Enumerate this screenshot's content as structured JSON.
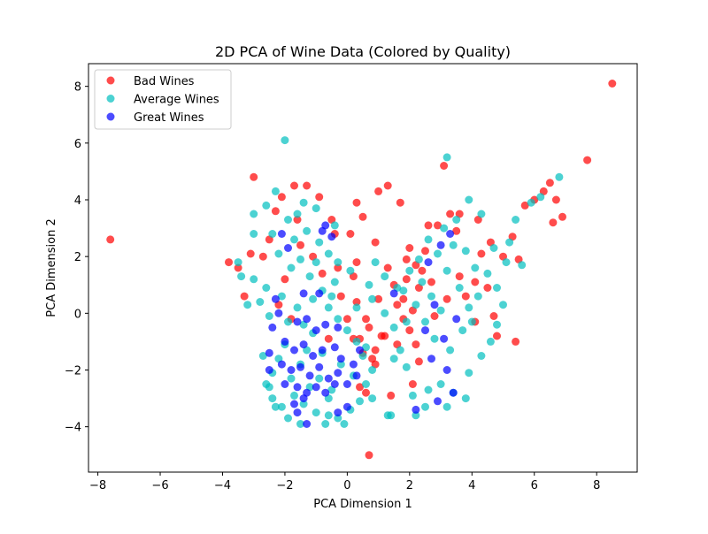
{
  "chart_data": {
    "type": "scatter",
    "title": "2D PCA of Wine Data (Colored by Quality)",
    "xlabel": "PCA Dimension 1",
    "ylabel": "PCA Dimension 2",
    "xlim": [
      -8.3,
      9.3
    ],
    "ylim": [
      -5.6,
      8.8
    ],
    "xticks": [
      -8,
      -6,
      -4,
      -2,
      0,
      2,
      4,
      6,
      8
    ],
    "yticks": [
      -4,
      -2,
      0,
      2,
      4,
      6,
      8
    ],
    "grid": false,
    "legend_position": "top-left",
    "series": [
      {
        "name": "Bad Wines",
        "color": "#ff0000",
        "opacity": 0.7,
        "points": [
          [
            8.5,
            8.1
          ],
          [
            -7.6,
            2.6
          ],
          [
            7.7,
            5.4
          ],
          [
            -3.0,
            4.8
          ],
          [
            -2.1,
            4.1
          ],
          [
            -1.7,
            4.5
          ],
          [
            -1.3,
            4.5
          ],
          [
            -0.9,
            4.1
          ],
          [
            -0.5,
            3.3
          ],
          [
            0.3,
            3.9
          ],
          [
            0.5,
            3.4
          ],
          [
            1.0,
            4.3
          ],
          [
            1.3,
            4.5
          ],
          [
            1.7,
            3.9
          ],
          [
            2.6,
            3.1
          ],
          [
            3.1,
            5.2
          ],
          [
            -3.5,
            1.6
          ],
          [
            -3.8,
            1.8
          ],
          [
            -3.3,
            0.6
          ],
          [
            -3.1,
            2.1
          ],
          [
            -2.7,
            2.0
          ],
          [
            -2.5,
            2.6
          ],
          [
            -0.4,
            2.8
          ],
          [
            0.1,
            2.8
          ],
          [
            0.9,
            2.5
          ],
          [
            1.0,
            0.5
          ],
          [
            1.5,
            1.0
          ],
          [
            1.9,
            1.2
          ],
          [
            1.6,
            0.3
          ],
          [
            1.2,
            -0.8
          ],
          [
            0.8,
            -1.6
          ],
          [
            0.7,
            -0.5
          ],
          [
            0.6,
            -0.2
          ],
          [
            0.3,
            0.4
          ],
          [
            0.4,
            -0.9
          ],
          [
            0.5,
            -1.4
          ],
          [
            0.9,
            -1.8
          ],
          [
            0.6,
            -2.8
          ],
          [
            0.7,
            -5.0
          ],
          [
            1.4,
            -2.9
          ],
          [
            0.4,
            -2.6
          ],
          [
            1.1,
            -0.8
          ],
          [
            0.9,
            -1.3
          ],
          [
            0.2,
            -0.9
          ],
          [
            2.0,
            2.3
          ],
          [
            1.9,
            1.9
          ],
          [
            2.2,
            1.7
          ],
          [
            2.5,
            2.2
          ],
          [
            2.3,
            0.9
          ],
          [
            1.8,
            0.5
          ],
          [
            1.8,
            -0.2
          ],
          [
            2.1,
            0.1
          ],
          [
            2.0,
            -0.6
          ],
          [
            2.2,
            -1.1
          ],
          [
            2.1,
            -2.5
          ],
          [
            3.6,
            3.5
          ],
          [
            4.2,
            3.3
          ],
          [
            4.6,
            2.5
          ],
          [
            5.0,
            2.0
          ],
          [
            5.3,
            2.7
          ],
          [
            5.5,
            1.9
          ],
          [
            5.7,
            3.8
          ],
          [
            6.0,
            4.0
          ],
          [
            6.3,
            4.3
          ],
          [
            6.5,
            4.6
          ],
          [
            6.7,
            4.0
          ],
          [
            6.9,
            3.4
          ],
          [
            6.6,
            3.2
          ],
          [
            5.4,
            -1.0
          ],
          [
            4.8,
            -0.8
          ],
          [
            4.5,
            0.9
          ],
          [
            4.1,
            1.1
          ],
          [
            3.8,
            0.6
          ],
          [
            4.7,
            -0.1
          ],
          [
            -1.1,
            2.0
          ],
          [
            -0.8,
            1.4
          ],
          [
            -0.3,
            1.6
          ],
          [
            0.2,
            1.3
          ],
          [
            -0.2,
            0.6
          ],
          [
            -1.5,
            2.4
          ],
          [
            -2.0,
            1.2
          ],
          [
            -1.8,
            -0.2
          ],
          [
            0.0,
            -0.2
          ],
          [
            -0.6,
            -0.9
          ],
          [
            0.3,
            1.8
          ],
          [
            1.3,
            1.6
          ],
          [
            3.3,
            3.5
          ],
          [
            2.9,
            3.1
          ],
          [
            3.5,
            2.9
          ],
          [
            4.3,
            2.1
          ],
          [
            2.8,
            -0.1
          ],
          [
            3.2,
            0.5
          ],
          [
            4.1,
            -0.3
          ],
          [
            3.6,
            1.3
          ],
          [
            2.4,
            1.5
          ],
          [
            2.7,
            1.1
          ],
          [
            1.6,
            -1.1
          ],
          [
            2.3,
            -1.7
          ],
          [
            -2.2,
            0.3
          ],
          [
            -1.6,
            3.3
          ],
          [
            -2.3,
            3.6
          ]
        ]
      },
      {
        "name": "Average Wines",
        "color": "#00bfbf",
        "opacity": 0.7,
        "points": [
          [
            -2.0,
            6.1
          ],
          [
            3.2,
            5.5
          ],
          [
            -3.0,
            3.5
          ],
          [
            -2.6,
            3.8
          ],
          [
            -2.3,
            4.3
          ],
          [
            -1.4,
            3.9
          ],
          [
            -1.0,
            3.7
          ],
          [
            -3.5,
            1.8
          ],
          [
            -3.4,
            1.3
          ],
          [
            -3.0,
            1.2
          ],
          [
            -2.6,
            0.9
          ],
          [
            -2.8,
            0.4
          ],
          [
            -3.2,
            0.3
          ],
          [
            -2.5,
            -0.1
          ],
          [
            -2.1,
            0.6
          ],
          [
            -1.8,
            1.6
          ],
          [
            -1.5,
            1.9
          ],
          [
            -1.2,
            1.3
          ],
          [
            -2.2,
            2.1
          ],
          [
            -1.7,
            2.6
          ],
          [
            -1.3,
            2.9
          ],
          [
            -0.9,
            2.5
          ],
          [
            -0.6,
            2.1
          ],
          [
            -0.3,
            1.8
          ],
          [
            0.1,
            1.5
          ],
          [
            -0.4,
            1.1
          ],
          [
            -0.8,
            0.8
          ],
          [
            -1.1,
            0.5
          ],
          [
            -1.6,
            0.2
          ],
          [
            -1.9,
            -0.3
          ],
          [
            -2.0,
            -1.1
          ],
          [
            -2.2,
            -1.6
          ],
          [
            -2.4,
            -2.1
          ],
          [
            -2.5,
            -2.6
          ],
          [
            -2.4,
            -3.0
          ],
          [
            -2.1,
            -3.3
          ],
          [
            -1.7,
            -2.9
          ],
          [
            -1.4,
            -3.2
          ],
          [
            -1.0,
            -3.5
          ],
          [
            -0.7,
            -3.9
          ],
          [
            -0.3,
            -3.7
          ],
          [
            0.1,
            -3.4
          ],
          [
            0.4,
            -3.1
          ],
          [
            0.6,
            -2.5
          ],
          [
            0.8,
            -2.0
          ],
          [
            0.5,
            -1.5
          ],
          [
            0.3,
            -1.0
          ],
          [
            0.0,
            -0.6
          ],
          [
            -0.3,
            -0.2
          ],
          [
            -0.6,
            0.2
          ],
          [
            -1.1,
            -0.7
          ],
          [
            -1.3,
            -1.3
          ],
          [
            -1.5,
            -1.8
          ],
          [
            -0.9,
            -2.3
          ],
          [
            -0.5,
            -2.7
          ],
          [
            0.2,
            -2.2
          ],
          [
            0.8,
            0.5
          ],
          [
            1.2,
            0.0
          ],
          [
            1.4,
            -3.6
          ],
          [
            1.5,
            -0.5
          ],
          [
            1.7,
            -1.3
          ],
          [
            1.9,
            -1.9
          ],
          [
            2.1,
            -2.9
          ],
          [
            2.2,
            -3.6
          ],
          [
            2.5,
            -3.3
          ],
          [
            2.6,
            -2.7
          ],
          [
            3.0,
            -2.5
          ],
          [
            3.2,
            -3.3
          ],
          [
            3.4,
            -2.8
          ],
          [
            3.8,
            -3.0
          ],
          [
            3.9,
            -2.1
          ],
          [
            4.3,
            -1.5
          ],
          [
            4.6,
            -1.0
          ],
          [
            4.8,
            -0.4
          ],
          [
            5.0,
            0.3
          ],
          [
            4.8,
            0.9
          ],
          [
            4.5,
            1.4
          ],
          [
            4.7,
            2.3
          ],
          [
            5.1,
            1.8
          ],
          [
            5.6,
            1.7
          ],
          [
            5.2,
            2.5
          ],
          [
            5.4,
            3.3
          ],
          [
            5.9,
            3.9
          ],
          [
            6.2,
            4.1
          ],
          [
            6.8,
            4.8
          ],
          [
            4.3,
            3.5
          ],
          [
            3.9,
            4.0
          ],
          [
            3.5,
            3.3
          ],
          [
            3.1,
            3.0
          ],
          [
            2.6,
            2.6
          ],
          [
            2.3,
            1.9
          ],
          [
            2.0,
            1.5
          ],
          [
            1.8,
            0.8
          ],
          [
            2.2,
            0.3
          ],
          [
            2.5,
            -0.3
          ],
          [
            2.8,
            -0.9
          ],
          [
            3.3,
            -1.3
          ],
          [
            3.7,
            -0.6
          ],
          [
            3.9,
            0.2
          ],
          [
            3.6,
            0.9
          ],
          [
            3.2,
            1.5
          ],
          [
            2.9,
            2.1
          ],
          [
            3.4,
            2.4
          ],
          [
            3.8,
            2.2
          ],
          [
            4.1,
            1.6
          ],
          [
            4.2,
            0.6
          ],
          [
            4.0,
            -0.3
          ],
          [
            2.7,
            0.6
          ],
          [
            2.4,
            1.1
          ],
          [
            3.0,
            0.1
          ],
          [
            -2.7,
            -1.5
          ],
          [
            -2.6,
            -2.5
          ],
          [
            -2.3,
            -3.3
          ],
          [
            -1.9,
            -3.7
          ],
          [
            -1.5,
            -3.9
          ],
          [
            -0.6,
            -3.6
          ],
          [
            -0.1,
            -3.9
          ],
          [
            0.8,
            -3.0
          ],
          [
            1.3,
            -3.6
          ],
          [
            -3.0,
            2.8
          ],
          [
            -2.4,
            2.8
          ],
          [
            -1.9,
            3.3
          ],
          [
            -1.6,
            3.5
          ],
          [
            -0.4,
            3.1
          ],
          [
            0.9,
            1.8
          ],
          [
            1.2,
            1.3
          ],
          [
            0.7,
            1.0
          ],
          [
            1.6,
            0.9
          ],
          [
            1.9,
            -0.3
          ],
          [
            1.5,
            -1.6
          ],
          [
            -1.0,
            1.8
          ],
          [
            -0.5,
            0.6
          ],
          [
            0.3,
            0.2
          ],
          [
            -1.4,
            -0.4
          ],
          [
            -0.8,
            -1.4
          ],
          [
            -0.2,
            -1.8
          ],
          [
            0.6,
            -1.2
          ],
          [
            -1.8,
            -2.3
          ],
          [
            -1.2,
            -2.6
          ],
          [
            -0.6,
            -3.0
          ]
        ]
      },
      {
        "name": "Great Wines",
        "color": "#0000ff",
        "opacity": 0.7,
        "points": [
          [
            -2.1,
            2.8
          ],
          [
            -1.9,
            2.3
          ],
          [
            -0.7,
            3.1
          ],
          [
            -0.8,
            2.9
          ],
          [
            -0.5,
            2.7
          ],
          [
            -1.4,
            0.7
          ],
          [
            -0.9,
            0.7
          ],
          [
            -2.3,
            0.5
          ],
          [
            -2.2,
            0.0
          ],
          [
            -1.6,
            -0.3
          ],
          [
            -1.3,
            -0.2
          ],
          [
            -1.0,
            -0.6
          ],
          [
            -0.7,
            -0.4
          ],
          [
            -0.3,
            -0.5
          ],
          [
            -2.4,
            -0.5
          ],
          [
            -2.5,
            -1.4
          ],
          [
            -2.0,
            -1.0
          ],
          [
            -1.7,
            -1.3
          ],
          [
            -1.4,
            -1.1
          ],
          [
            -1.1,
            -1.5
          ],
          [
            -0.8,
            -1.3
          ],
          [
            -0.4,
            -1.2
          ],
          [
            -0.2,
            -1.6
          ],
          [
            0.2,
            -1.8
          ],
          [
            0.4,
            -1.3
          ],
          [
            -2.5,
            -2.0
          ],
          [
            -2.1,
            -1.8
          ],
          [
            -1.8,
            -2.0
          ],
          [
            -1.5,
            -1.9
          ],
          [
            -1.2,
            -2.2
          ],
          [
            -0.9,
            -1.9
          ],
          [
            -0.6,
            -2.3
          ],
          [
            -0.3,
            -2.1
          ],
          [
            0.0,
            -2.5
          ],
          [
            0.3,
            -2.2
          ],
          [
            -2.0,
            -2.5
          ],
          [
            -1.6,
            -2.6
          ],
          [
            -1.3,
            -2.8
          ],
          [
            -1.0,
            -2.6
          ],
          [
            -0.7,
            -2.8
          ],
          [
            -0.4,
            -2.5
          ],
          [
            -1.7,
            -3.2
          ],
          [
            -1.4,
            -3.0
          ],
          [
            -1.3,
            -3.9
          ],
          [
            -1.6,
            -3.5
          ],
          [
            -0.3,
            -3.5
          ],
          [
            0.0,
            -3.3
          ],
          [
            1.5,
            0.7
          ],
          [
            2.6,
            1.8
          ],
          [
            3.0,
            2.4
          ],
          [
            3.3,
            2.8
          ],
          [
            2.8,
            0.3
          ],
          [
            2.5,
            -0.6
          ],
          [
            3.1,
            -0.9
          ],
          [
            3.5,
            -0.2
          ],
          [
            2.7,
            -1.6
          ],
          [
            3.2,
            -2.0
          ],
          [
            3.4,
            -2.8
          ],
          [
            2.2,
            -3.4
          ],
          [
            2.9,
            -3.1
          ]
        ]
      }
    ]
  }
}
